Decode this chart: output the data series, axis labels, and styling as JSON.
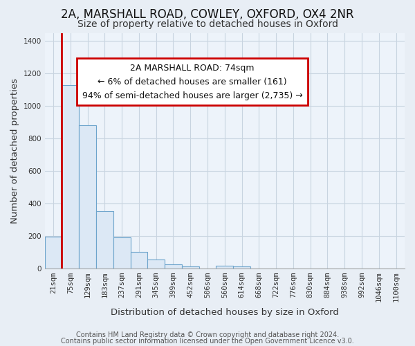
{
  "title": "2A, MARSHALL ROAD, COWLEY, OXFORD, OX4 2NR",
  "subtitle": "Size of property relative to detached houses in Oxford",
  "xlabel": "Distribution of detached houses by size in Oxford",
  "ylabel": "Number of detached properties",
  "bar_labels": [
    "21sqm",
    "75sqm",
    "129sqm",
    "183sqm",
    "237sqm",
    "291sqm",
    "345sqm",
    "399sqm",
    "452sqm",
    "506sqm",
    "560sqm",
    "614sqm",
    "668sqm",
    "722sqm",
    "776sqm",
    "830sqm",
    "884sqm",
    "938sqm",
    "992sqm",
    "1046sqm",
    "1100sqm"
  ],
  "bar_values": [
    195,
    1130,
    880,
    350,
    190,
    100,
    55,
    22,
    12,
    0,
    15,
    10,
    0,
    0,
    0,
    0,
    0,
    0,
    0,
    0,
    0
  ],
  "bar_color_fill": "#dce8f5",
  "bar_color_edge": "#6da4cc",
  "red_line_color": "#cc0000",
  "red_line_x": 0.5,
  "annotation_text_line1": "2A MARSHALL ROAD: 74sqm",
  "annotation_text_line2": "← 6% of detached houses are smaller (161)",
  "annotation_text_line3": "94% of semi-detached houses are larger (2,735) →",
  "ylim": [
    0,
    1450
  ],
  "yticks": [
    0,
    200,
    400,
    600,
    800,
    1000,
    1200,
    1400
  ],
  "bg_color": "#e8eef5",
  "plot_bg_color": "#edf3fa",
  "grid_color": "#c8d4e0",
  "title_fontsize": 12,
  "subtitle_fontsize": 10,
  "axis_label_fontsize": 9.5,
  "tick_fontsize": 7.5,
  "footer_fontsize": 7,
  "annotation_fontsize": 9,
  "footer_line1": "Contains HM Land Registry data © Crown copyright and database right 2024.",
  "footer_line2": "Contains public sector information licensed under the Open Government Licence v3.0."
}
